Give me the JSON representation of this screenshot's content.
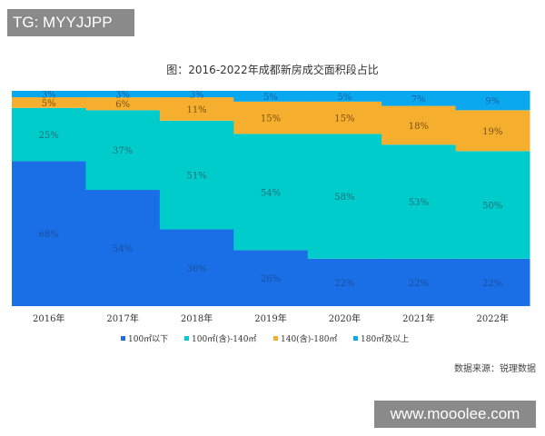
{
  "watermark_top": "TG: MYYJJPP",
  "watermark_bottom": "www.mooolee.com",
  "source": "数据来源：锐理数据",
  "chart_data": {
    "type": "bar",
    "stacked": "100%",
    "title": "图：2016-2022年成都新房成交面积段占比",
    "categories": [
      "2016年",
      "2017年",
      "2018年",
      "2019年",
      "2020年",
      "2021年",
      "2022年"
    ],
    "series": [
      {
        "name": "100㎡以下",
        "color": "#1a6fe6",
        "values": [
          68,
          54,
          36,
          26,
          22,
          22,
          22
        ]
      },
      {
        "name": "100㎡(含)-140㎡",
        "color": "#00cccc",
        "values": [
          25,
          37,
          51,
          54,
          58,
          53,
          50
        ]
      },
      {
        "name": "140(含)-180㎡",
        "color": "#f5ae2e",
        "values": [
          5,
          6,
          11,
          15,
          15,
          18,
          19
        ]
      },
      {
        "name": "180㎡及以上",
        "color": "#0aa8ee",
        "values": [
          3,
          3,
          3,
          5,
          5,
          7,
          9
        ]
      }
    ],
    "value_suffix": "%",
    "legend": "bottom",
    "grid": false
  }
}
